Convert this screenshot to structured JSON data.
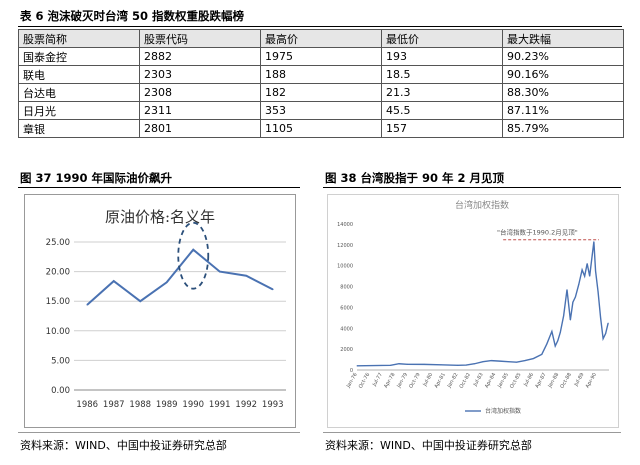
{
  "table": {
    "title": "表 6 泡沫破灭时台湾 50 指数权重股跌幅榜",
    "headers": [
      "股票简称",
      "股票代码",
      "最高价",
      "最低价",
      "最大跌幅"
    ],
    "rows": [
      [
        "国泰金控",
        "2882",
        "1975",
        "193",
        "90.23%"
      ],
      [
        "联电",
        "2303",
        "188",
        "18.5",
        "90.16%"
      ],
      [
        "台达电",
        "2308",
        "182",
        "21.3",
        "88.30%"
      ],
      [
        "日月光",
        "2311",
        "353",
        "45.5",
        "87.11%"
      ],
      [
        "章银",
        "2801",
        "1105",
        "157",
        "85.79%"
      ]
    ]
  },
  "figure37": {
    "title": "图 37   1990 年国际油价飙升",
    "source": "资料来源：WIND、中国中投证券研究总部"
  },
  "figure38": {
    "title": "图 38   台湾股指于 90 年 2 月见顶",
    "source": "资料来源：WIND、中国中投证券研究总部"
  },
  "colors": {
    "line": "#4a72b2",
    "dashed": "#2b4f7a",
    "annotation": "#c0504d"
  },
  "chart_data": [
    {
      "type": "line",
      "title": "原油价格:名义年",
      "x": [
        "1986",
        "1987",
        "1988",
        "1989",
        "1990",
        "1991",
        "1992",
        "1993"
      ],
      "series": [
        {
          "values": [
            14.4,
            18.4,
            15.0,
            18.2,
            23.7,
            20.0,
            19.3,
            17.0
          ]
        }
      ],
      "ylim": [
        0,
        25
      ],
      "yticks": [
        "0.00",
        "5.00",
        "10.00",
        "15.00",
        "20.00",
        "25.00"
      ],
      "grid": true,
      "annotations": [
        "dashed ellipse around 1990 peak"
      ]
    },
    {
      "type": "line",
      "title": "台湾加权指数",
      "annotation": "\"台湾指数于1990.2月见顶\"",
      "legend": "台湾加权指数",
      "ylim": [
        0,
        14000
      ],
      "yticks": [
        "0",
        "2000",
        "4000",
        "6000",
        "8000",
        "10000",
        "12000",
        "14000"
      ],
      "xticks": [
        "Jan-76",
        "Oct-76",
        "Jul-77",
        "Apr-78",
        "Jan-79",
        "Oct-79",
        "Jul-80",
        "Apr-81",
        "Jan-82",
        "Oct-82",
        "Jul-83",
        "Apr-84",
        "Jan-85",
        "Oct-85",
        "Jul-86",
        "Apr-87",
        "Jan-88",
        "Oct-88",
        "Jul-89",
        "Apr-90"
      ],
      "series": [
        {
          "name": "台湾加权指数",
          "x": [
            1976.0,
            1977.0,
            1978.0,
            1978.5,
            1979.0,
            1980.0,
            1981.0,
            1982.0,
            1982.5,
            1983.0,
            1983.5,
            1984.0,
            1984.5,
            1985.0,
            1985.5,
            1986.0,
            1986.5,
            1987.0,
            1987.3,
            1987.6,
            1987.8,
            1987.95,
            1988.1,
            1988.3,
            1988.5,
            1988.7,
            1988.85,
            1989.0,
            1989.2,
            1989.4,
            1989.55,
            1989.7,
            1989.85,
            1990.0,
            1990.1,
            1990.2,
            1990.35,
            1990.5,
            1990.65,
            1990.8,
            1990.95
          ],
          "values": [
            400,
            430,
            450,
            600,
            550,
            540,
            500,
            450,
            470,
            600,
            800,
            900,
            850,
            800,
            750,
            900,
            1100,
            1500,
            2500,
            3700,
            2300,
            2800,
            3600,
            5200,
            7700,
            4800,
            6500,
            7000,
            8200,
            9600,
            9000,
            10200,
            9000,
            11000,
            12300,
            9500,
            7500,
            5000,
            3000,
            3500,
            4500
          ]
        }
      ]
    }
  ]
}
